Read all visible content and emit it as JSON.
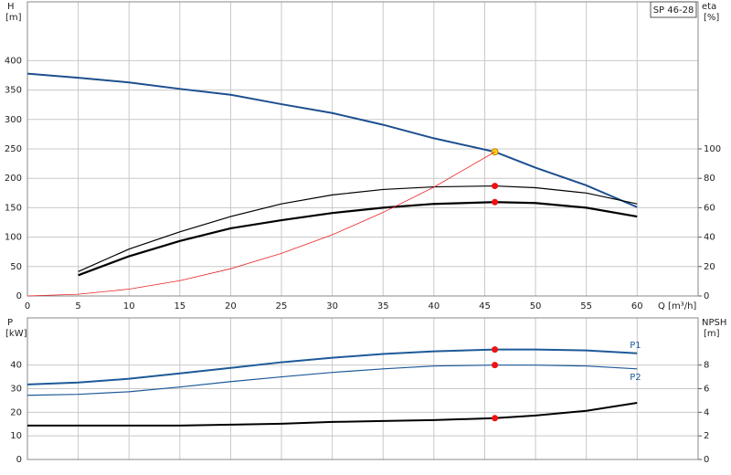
{
  "chart_data": [
    {
      "type": "line",
      "title": "SP 46-28",
      "ylabel": "H",
      "yunit": "[m]",
      "y2label": "eta",
      "y2unit": "[%]",
      "xlabel": "Q [m³/h]",
      "x": [
        0,
        5,
        10,
        15,
        20,
        25,
        30,
        35,
        40,
        46,
        50,
        55,
        60
      ],
      "xlim": [
        0,
        66
      ],
      "xticks": [
        0,
        5,
        10,
        15,
        20,
        25,
        30,
        35,
        40,
        45,
        50,
        55,
        60
      ],
      "ylim": [
        0,
        500
      ],
      "yticks": [
        0,
        50,
        100,
        150,
        200,
        250,
        300,
        350,
        400
      ],
      "y2lim": [
        0,
        200
      ],
      "y2ticks": [
        0,
        20,
        40,
        60,
        80,
        100
      ],
      "grid": true,
      "series": [
        {
          "color": "#1d4f8f",
          "width": 2,
          "values": [
            378,
            371,
            363,
            352,
            342,
            326,
            311,
            291,
            268,
            245,
            218,
            188,
            151
          ],
          "marker_at": 9,
          "marker_color": "#ffd21f"
        },
        {
          "color": "#000000",
          "width": 1.2,
          "axis": "y2",
          "values": [
            null,
            16.6,
            31.9,
            43.6,
            54,
            62.6,
            68.7,
            72.4,
            74.2,
            74.8,
            73.6,
            70,
            62.6
          ],
          "marker_at": 9,
          "marker_color": "#ee1111"
        },
        {
          "color": "#000000",
          "width": 2.2,
          "axis": "y2",
          "values": [
            null,
            14.1,
            27,
            37.4,
            46,
            51.5,
            56.4,
            60,
            62.6,
            63.8,
            63.2,
            60,
            54
          ],
          "marker_at": 9,
          "marker_color": "#ee1111"
        },
        {
          "color": "#ee2222",
          "width": 0.8,
          "values": [
            0,
            2.9,
            11.6,
            26,
            46.3,
            72.4,
            104,
            142,
            185,
            245,
            null,
            null,
            null
          ]
        }
      ]
    },
    {
      "type": "line",
      "ylabel": "P",
      "yunit": "[kW]",
      "y2label": "NPSH",
      "y2unit": "[m]",
      "x": [
        0,
        5,
        10,
        15,
        20,
        25,
        30,
        35,
        40,
        46,
        50,
        55,
        60
      ],
      "xlim": [
        0,
        66
      ],
      "ylim": [
        0,
        60
      ],
      "yticks": [
        0,
        10,
        20,
        30,
        40
      ],
      "y2lim": [
        0,
        12
      ],
      "y2ticks": [
        0,
        2,
        4,
        6,
        8
      ],
      "grid": true,
      "series": [
        {
          "name": "P1",
          "color": "#1d5a98",
          "width": 2,
          "values": [
            31.8,
            32.6,
            34.2,
            36.5,
            38.8,
            41.2,
            43.1,
            44.7,
            45.8,
            46.6,
            46.6,
            46.2,
            45
          ],
          "marker_at": 9,
          "marker_color": "#ee1111"
        },
        {
          "name": "P2",
          "color": "#1d5a98",
          "width": 1.2,
          "values": [
            27.2,
            27.6,
            28.7,
            30.7,
            33,
            35,
            36.9,
            38.4,
            39.6,
            40,
            40,
            39.6,
            38.4
          ],
          "marker_at": 9,
          "marker_color": "#ee1111"
        },
        {
          "color": "#000000",
          "width": 2,
          "axis": "y2",
          "values": [
            2.87,
            2.87,
            2.87,
            2.87,
            2.95,
            3.03,
            3.18,
            3.26,
            3.34,
            3.5,
            3.73,
            4.12,
            4.8
          ],
          "marker_at": 9,
          "marker_color": "#ee1111"
        }
      ]
    }
  ]
}
